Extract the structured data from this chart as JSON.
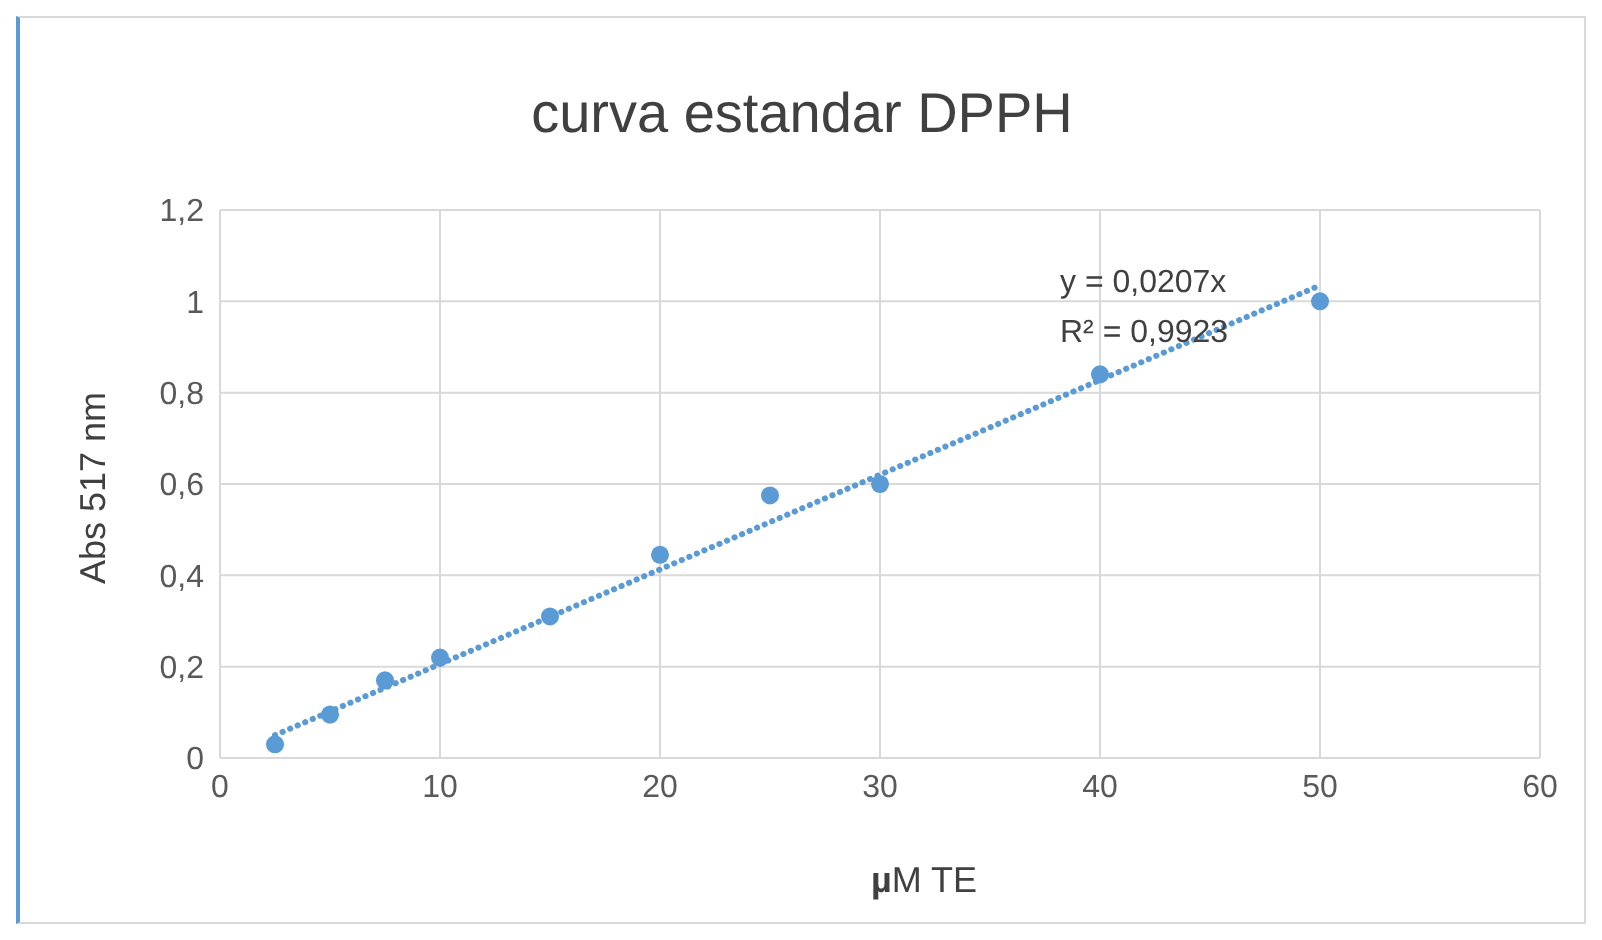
{
  "chart_data": {
    "type": "scatter",
    "title": "curva estandar DPPH",
    "xlabel": "µM TE",
    "ylabel": "Abs 517 nm",
    "xlim": [
      0,
      60
    ],
    "xticks": [
      0,
      10,
      20,
      30,
      40,
      50,
      60
    ],
    "ylim": [
      0,
      1.2
    ],
    "yticks": [
      0,
      {
        "value": 0.2,
        "label": "0,2"
      },
      {
        "value": 0.4,
        "label": "0,4"
      },
      {
        "value": 0.6,
        "label": "0,6"
      },
      {
        "value": 0.8,
        "label": "0,8"
      },
      1,
      {
        "value": 1.2,
        "label": "1,2"
      }
    ],
    "grid": true,
    "legend": false,
    "series": [
      {
        "marker": "circle",
        "color": "#5b9bd5",
        "x": [
          2.5,
          5,
          7.5,
          10,
          15,
          20,
          25,
          30,
          40,
          50
        ],
        "values": [
          0.03,
          0.095,
          0.17,
          0.22,
          0.31,
          0.445,
          0.575,
          0.6,
          0.84,
          1.0
        ]
      },
      {
        "type": "line",
        "marker": "none",
        "color": "#5b9bd5",
        "line_style": "dotted",
        "x": [
          2.5,
          50
        ],
        "values": [
          0.05,
          1.035
        ]
      }
    ],
    "annotations": [
      "y = 0,0207x",
      "R² = 0,9923"
    ]
  }
}
